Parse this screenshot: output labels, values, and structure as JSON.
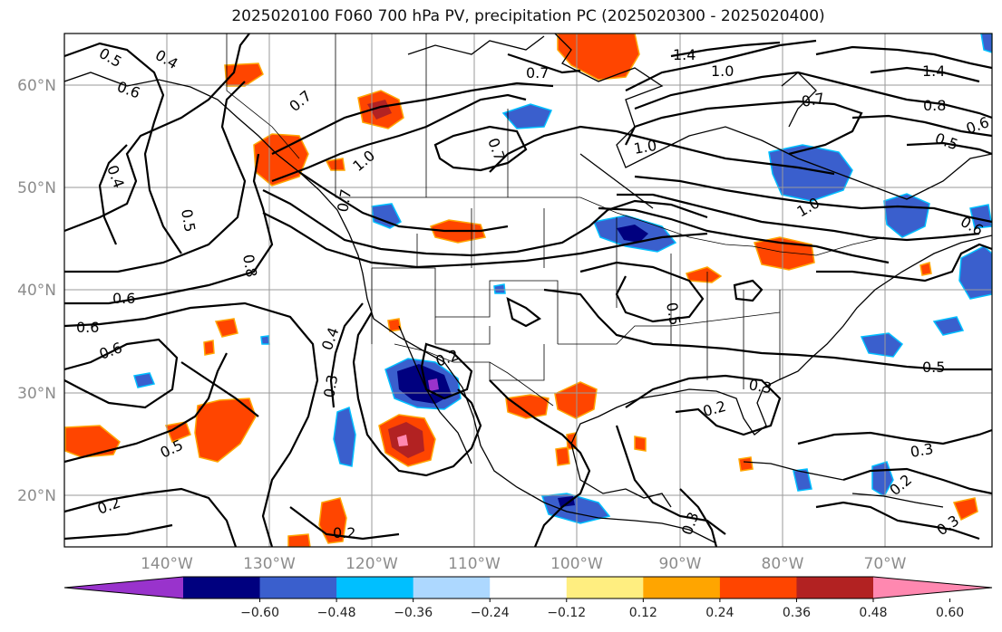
{
  "title": "2025020100 F060 700 hPa PV, precipitation PC (2025020300 - 2025020400)",
  "map": {
    "lat_labels": [
      "60°N",
      "50°N",
      "40°N",
      "30°N",
      "20°N"
    ],
    "lon_labels": [
      "140°W",
      "130°W",
      "120°W",
      "110°W",
      "100°W",
      "90°W",
      "80°W",
      "70°W"
    ],
    "extent": {
      "lon_min": -150,
      "lon_max": -58,
      "lat_min": 15,
      "lat_max": 65
    }
  },
  "contour_labels": [
    "0.5",
    "0.4",
    "0.6",
    "0.7",
    "0.7",
    "1.4",
    "1.0",
    "1.4",
    "0.7",
    "0.8",
    "0.6",
    "0.5",
    "0.4",
    "0.7",
    "1.0",
    "0.5",
    "1.0",
    "1.0",
    "0.6",
    "0.7",
    "0.8",
    "0.6",
    "0.6",
    "0.6",
    "0.5",
    "0.4",
    "0.3",
    "0.2",
    "0.3",
    "0.5",
    "0.2",
    "0.5",
    "0.3",
    "0.2",
    "0.3",
    "0.2",
    "0.2",
    "0.3"
  ],
  "colorbar": {
    "ticks": [
      "−0.60",
      "−0.48",
      "−0.36",
      "−0.24",
      "−0.12",
      "0.12",
      "0.24",
      "0.36",
      "0.48",
      "0.60"
    ],
    "colors": [
      "#9933cc",
      "#00007f",
      "#3a5fcd",
      "#00bfff",
      "#add8ff",
      "#ffffff",
      "#ffee80",
      "#ffa500",
      "#ff4500",
      "#b22222",
      "#ff88b0"
    ]
  }
}
